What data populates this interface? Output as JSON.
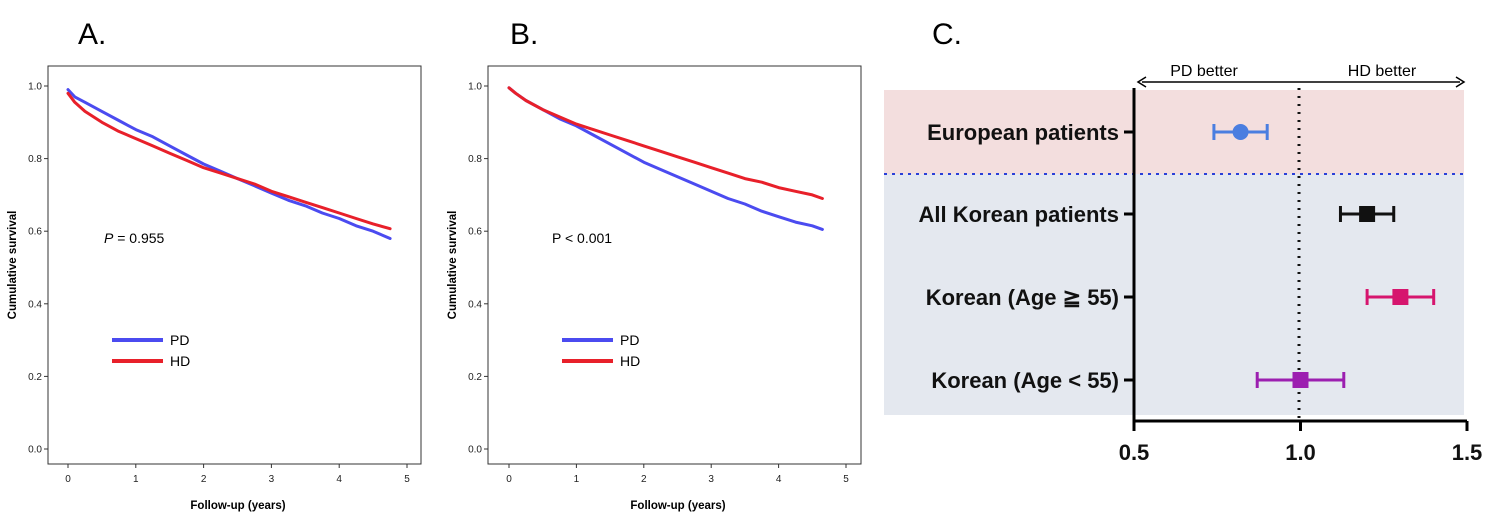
{
  "panels": {
    "a": {
      "label": "A."
    },
    "b": {
      "label": "B."
    },
    "c": {
      "label": "C."
    }
  },
  "chart_data": [
    {
      "type": "line",
      "panel": "A.",
      "title": "",
      "xlabel": "Follow-up (years)",
      "ylabel": "Cumulative survival",
      "xlim": [
        0,
        5
      ],
      "ylim": [
        0.0,
        1.0
      ],
      "xticks": [
        "0",
        "1",
        "2",
        "3",
        "4",
        "5"
      ],
      "yticks": [
        "0.0",
        "0.2",
        "0.4",
        "0.6",
        "0.8",
        "1.0"
      ],
      "annotation": {
        "label": "P",
        "text": " = 0.955"
      },
      "legend": {
        "placement": "lower-left"
      },
      "series": [
        {
          "name": "PD",
          "color": "#4b4bf0",
          "x": [
            0,
            0.1,
            0.25,
            0.5,
            0.75,
            1.0,
            1.25,
            1.5,
            1.75,
            2.0,
            2.25,
            2.5,
            2.75,
            3.0,
            3.25,
            3.5,
            3.75,
            4.0,
            4.25,
            4.5,
            4.75
          ],
          "y": [
            0.99,
            0.97,
            0.955,
            0.93,
            0.905,
            0.88,
            0.86,
            0.835,
            0.81,
            0.785,
            0.765,
            0.745,
            0.725,
            0.705,
            0.685,
            0.67,
            0.65,
            0.635,
            0.615,
            0.6,
            0.58
          ]
        },
        {
          "name": "HD",
          "color": "#e8202a",
          "x": [
            0,
            0.1,
            0.25,
            0.5,
            0.75,
            1.0,
            1.25,
            1.5,
            1.75,
            2.0,
            2.25,
            2.5,
            2.75,
            3.0,
            3.25,
            3.5,
            3.75,
            4.0,
            4.25,
            4.5,
            4.75
          ],
          "y": [
            0.98,
            0.955,
            0.93,
            0.9,
            0.875,
            0.855,
            0.835,
            0.815,
            0.795,
            0.775,
            0.76,
            0.745,
            0.73,
            0.71,
            0.695,
            0.68,
            0.665,
            0.65,
            0.635,
            0.62,
            0.607
          ]
        }
      ]
    },
    {
      "type": "line",
      "panel": "B.",
      "title": "",
      "xlabel": "Follow-up (years)",
      "ylabel": "Cumulative survival",
      "xlim": [
        0,
        5
      ],
      "ylim": [
        0.0,
        1.0
      ],
      "xticks": [
        "0",
        "1",
        "2",
        "3",
        "4",
        "5"
      ],
      "yticks": [
        "0.0",
        "0.2",
        "0.4",
        "0.6",
        "0.8",
        "1.0"
      ],
      "annotation": {
        "label": "P",
        "text": " < 0.001"
      },
      "legend": {
        "placement": "lower-left"
      },
      "series": [
        {
          "name": "PD",
          "color": "#4b4bf0",
          "x": [
            0,
            0.1,
            0.25,
            0.5,
            0.75,
            1.0,
            1.25,
            1.5,
            1.75,
            2.0,
            2.25,
            2.5,
            2.75,
            3.0,
            3.25,
            3.5,
            3.75,
            4.0,
            4.25,
            4.5,
            4.65
          ],
          "y": [
            0.995,
            0.98,
            0.96,
            0.935,
            0.91,
            0.89,
            0.865,
            0.84,
            0.815,
            0.79,
            0.77,
            0.75,
            0.73,
            0.71,
            0.69,
            0.675,
            0.655,
            0.64,
            0.625,
            0.615,
            0.605
          ]
        },
        {
          "name": "HD",
          "color": "#e8202a",
          "x": [
            0,
            0.1,
            0.25,
            0.5,
            0.75,
            1.0,
            1.25,
            1.5,
            1.75,
            2.0,
            2.25,
            2.5,
            2.75,
            3.0,
            3.25,
            3.5,
            3.75,
            4.0,
            4.25,
            4.5,
            4.65
          ],
          "y": [
            0.995,
            0.98,
            0.96,
            0.935,
            0.915,
            0.895,
            0.88,
            0.865,
            0.85,
            0.835,
            0.82,
            0.805,
            0.79,
            0.775,
            0.76,
            0.745,
            0.735,
            0.72,
            0.71,
            0.7,
            0.69
          ]
        }
      ]
    },
    {
      "type": "forest",
      "panel": "C.",
      "title": "",
      "xlim": [
        0.5,
        1.5
      ],
      "xticks": [
        "0.5",
        "1.0",
        "1.5"
      ],
      "reference": 1.0,
      "direction_labels": {
        "left": "PD better",
        "right": "HD better"
      },
      "categories": [
        "European patients",
        "All Korean patients",
        "Korean (Age ≧ 55)",
        "Korean (Age < 55)"
      ],
      "groups": [
        {
          "rows": [
            0
          ],
          "shade": "#f3dede"
        },
        {
          "rows": [
            1,
            2,
            3
          ],
          "shade": "#e4e8ef"
        }
      ],
      "estimates": [
        {
          "label": "European patients",
          "value": 0.82,
          "lower": 0.74,
          "upper": 0.9,
          "color": "#4a7ee0",
          "marker": "circle"
        },
        {
          "label": "All Korean patients",
          "value": 1.2,
          "lower": 1.12,
          "upper": 1.28,
          "color": "#111111",
          "marker": "square"
        },
        {
          "label": "Korean (Age ≧ 55)",
          "value": 1.3,
          "lower": 1.2,
          "upper": 1.4,
          "color": "#d6156e",
          "marker": "square"
        },
        {
          "label": "Korean (Age < 55)",
          "value": 1.0,
          "lower": 0.87,
          "upper": 1.13,
          "color": "#9c1fb0",
          "marker": "square"
        }
      ]
    }
  ]
}
